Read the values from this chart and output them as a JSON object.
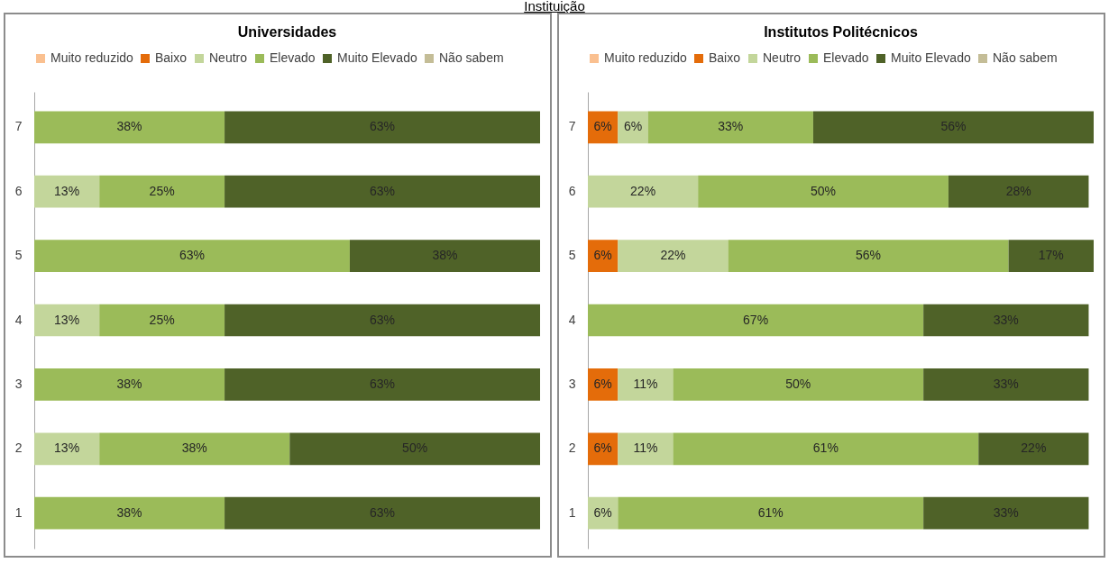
{
  "chart_data": [
    {
      "type": "bar",
      "orientation": "horizontal",
      "stacked": true,
      "title": "Universidades",
      "annotations": [
        "Instituição"
      ],
      "categories": [
        "7",
        "6",
        "5",
        "4",
        "3",
        "2",
        "1"
      ],
      "legend": "top",
      "tick_labels": "y",
      "data_labels": true,
      "series": [
        {
          "name": "Muito reduzido",
          "color": "#fac090",
          "values": [
            null,
            null,
            null,
            null,
            null,
            null,
            null
          ]
        },
        {
          "name": "Baixo",
          "color": "#e46c0a",
          "values": [
            null,
            null,
            null,
            null,
            null,
            null,
            null
          ]
        },
        {
          "name": "Neutro",
          "color": "#c3d69b",
          "values": [
            null,
            13,
            null,
            13,
            null,
            13,
            null
          ],
          "value_labels": [
            null,
            "13%",
            null,
            "13%",
            null,
            "13%",
            null
          ]
        },
        {
          "name": "Elevado",
          "color": "#9bbb59",
          "values": [
            38,
            25,
            63,
            25,
            38,
            38,
            38
          ],
          "value_labels": [
            "38%",
            "25%",
            "63%",
            "25%",
            "38%",
            "38%",
            "38%"
          ]
        },
        {
          "name": "Muito Elevado",
          "color": "#4f6228",
          "values": [
            63,
            63,
            38,
            63,
            63,
            50,
            63
          ],
          "value_labels": [
            "63%",
            "63%",
            "38%",
            "63%",
            "63%",
            "50%",
            "63%"
          ]
        },
        {
          "name": "Não sabem",
          "color": "#c4bd97",
          "values": [
            null,
            null,
            null,
            null,
            null,
            null,
            null
          ]
        }
      ]
    },
    {
      "type": "bar",
      "orientation": "horizontal",
      "stacked": true,
      "title": "Institutos Politécnicos",
      "categories": [
        "7",
        "6",
        "5",
        "4",
        "3",
        "2",
        "1"
      ],
      "legend": "top",
      "tick_labels": "y",
      "data_labels": true,
      "series": [
        {
          "name": "Muito reduzido",
          "color": "#fac090",
          "values": [
            null,
            null,
            null,
            null,
            null,
            null,
            null
          ]
        },
        {
          "name": "Baixo",
          "color": "#e46c0a",
          "values": [
            6,
            null,
            6,
            null,
            6,
            6,
            null
          ],
          "value_labels": [
            "6%",
            null,
            "6%",
            null,
            "6%",
            "6%",
            null
          ]
        },
        {
          "name": "Neutro",
          "color": "#c3d69b",
          "values": [
            6,
            22,
            22,
            null,
            11,
            11,
            6
          ],
          "value_labels": [
            "6%",
            "22%",
            "22%",
            null,
            "11%",
            "11%",
            "6%"
          ]
        },
        {
          "name": "Elevado",
          "color": "#9bbb59",
          "values": [
            33,
            50,
            56,
            67,
            50,
            61,
            61
          ],
          "value_labels": [
            "33%",
            "50%",
            "56%",
            "67%",
            "50%",
            "61%",
            "61%"
          ]
        },
        {
          "name": "Muito Elevado",
          "color": "#4f6228",
          "values": [
            56,
            28,
            17,
            33,
            33,
            22,
            33
          ],
          "value_labels": [
            "56%",
            "28%",
            "17%",
            "33%",
            "33%",
            "22%",
            "33%"
          ]
        },
        {
          "name": "Não sabem",
          "color": "#c4bd97",
          "values": [
            null,
            null,
            null,
            null,
            null,
            null,
            null
          ]
        }
      ]
    }
  ]
}
